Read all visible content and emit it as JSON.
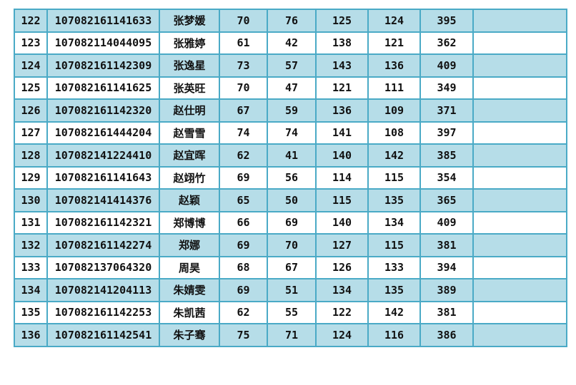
{
  "colors": {
    "shaded_row": "#b6dde8",
    "border": "#4aaac6"
  },
  "rows": [
    {
      "no": "122",
      "id": "107082161141633",
      "name": "张梦媛",
      "s1": "70",
      "s2": "76",
      "s3": "125",
      "s4": "124",
      "total": "395",
      "note": ""
    },
    {
      "no": "123",
      "id": "107082114044095",
      "name": "张雅婷",
      "s1": "61",
      "s2": "42",
      "s3": "138",
      "s4": "121",
      "total": "362",
      "note": ""
    },
    {
      "no": "124",
      "id": "107082161142309",
      "name": "张逸星",
      "s1": "73",
      "s2": "57",
      "s3": "143",
      "s4": "136",
      "total": "409",
      "note": ""
    },
    {
      "no": "125",
      "id": "107082161141625",
      "name": "张英旺",
      "s1": "70",
      "s2": "47",
      "s3": "121",
      "s4": "111",
      "total": "349",
      "note": ""
    },
    {
      "no": "126",
      "id": "107082161142320",
      "name": "赵仕明",
      "s1": "67",
      "s2": "59",
      "s3": "136",
      "s4": "109",
      "total": "371",
      "note": ""
    },
    {
      "no": "127",
      "id": "107082161444204",
      "name": "赵雪雪",
      "s1": "74",
      "s2": "74",
      "s3": "141",
      "s4": "108",
      "total": "397",
      "note": ""
    },
    {
      "no": "128",
      "id": "107082141224410",
      "name": "赵宜晖",
      "s1": "62",
      "s2": "41",
      "s3": "140",
      "s4": "142",
      "total": "385",
      "note": ""
    },
    {
      "no": "129",
      "id": "107082161141643",
      "name": "赵翊竹",
      "s1": "69",
      "s2": "56",
      "s3": "114",
      "s4": "115",
      "total": "354",
      "note": ""
    },
    {
      "no": "130",
      "id": "107082141414376",
      "name": "赵颖",
      "s1": "65",
      "s2": "50",
      "s3": "115",
      "s4": "135",
      "total": "365",
      "note": ""
    },
    {
      "no": "131",
      "id": "107082161142321",
      "name": "郑博博",
      "s1": "66",
      "s2": "69",
      "s3": "140",
      "s4": "134",
      "total": "409",
      "note": ""
    },
    {
      "no": "132",
      "id": "107082161142274",
      "name": "郑娜",
      "s1": "69",
      "s2": "70",
      "s3": "127",
      "s4": "115",
      "total": "381",
      "note": ""
    },
    {
      "no": "133",
      "id": "107082137064320",
      "name": "周昊",
      "s1": "68",
      "s2": "67",
      "s3": "126",
      "s4": "133",
      "total": "394",
      "note": ""
    },
    {
      "no": "134",
      "id": "107082141204113",
      "name": "朱婧雯",
      "s1": "69",
      "s2": "51",
      "s3": "134",
      "s4": "135",
      "total": "389",
      "note": ""
    },
    {
      "no": "135",
      "id": "107082161142253",
      "name": "朱凯茜",
      "s1": "62",
      "s2": "55",
      "s3": "122",
      "s4": "142",
      "total": "381",
      "note": ""
    },
    {
      "no": "136",
      "id": "107082161142541",
      "name": "朱子骞",
      "s1": "75",
      "s2": "71",
      "s3": "124",
      "s4": "116",
      "total": "386",
      "note": ""
    }
  ]
}
